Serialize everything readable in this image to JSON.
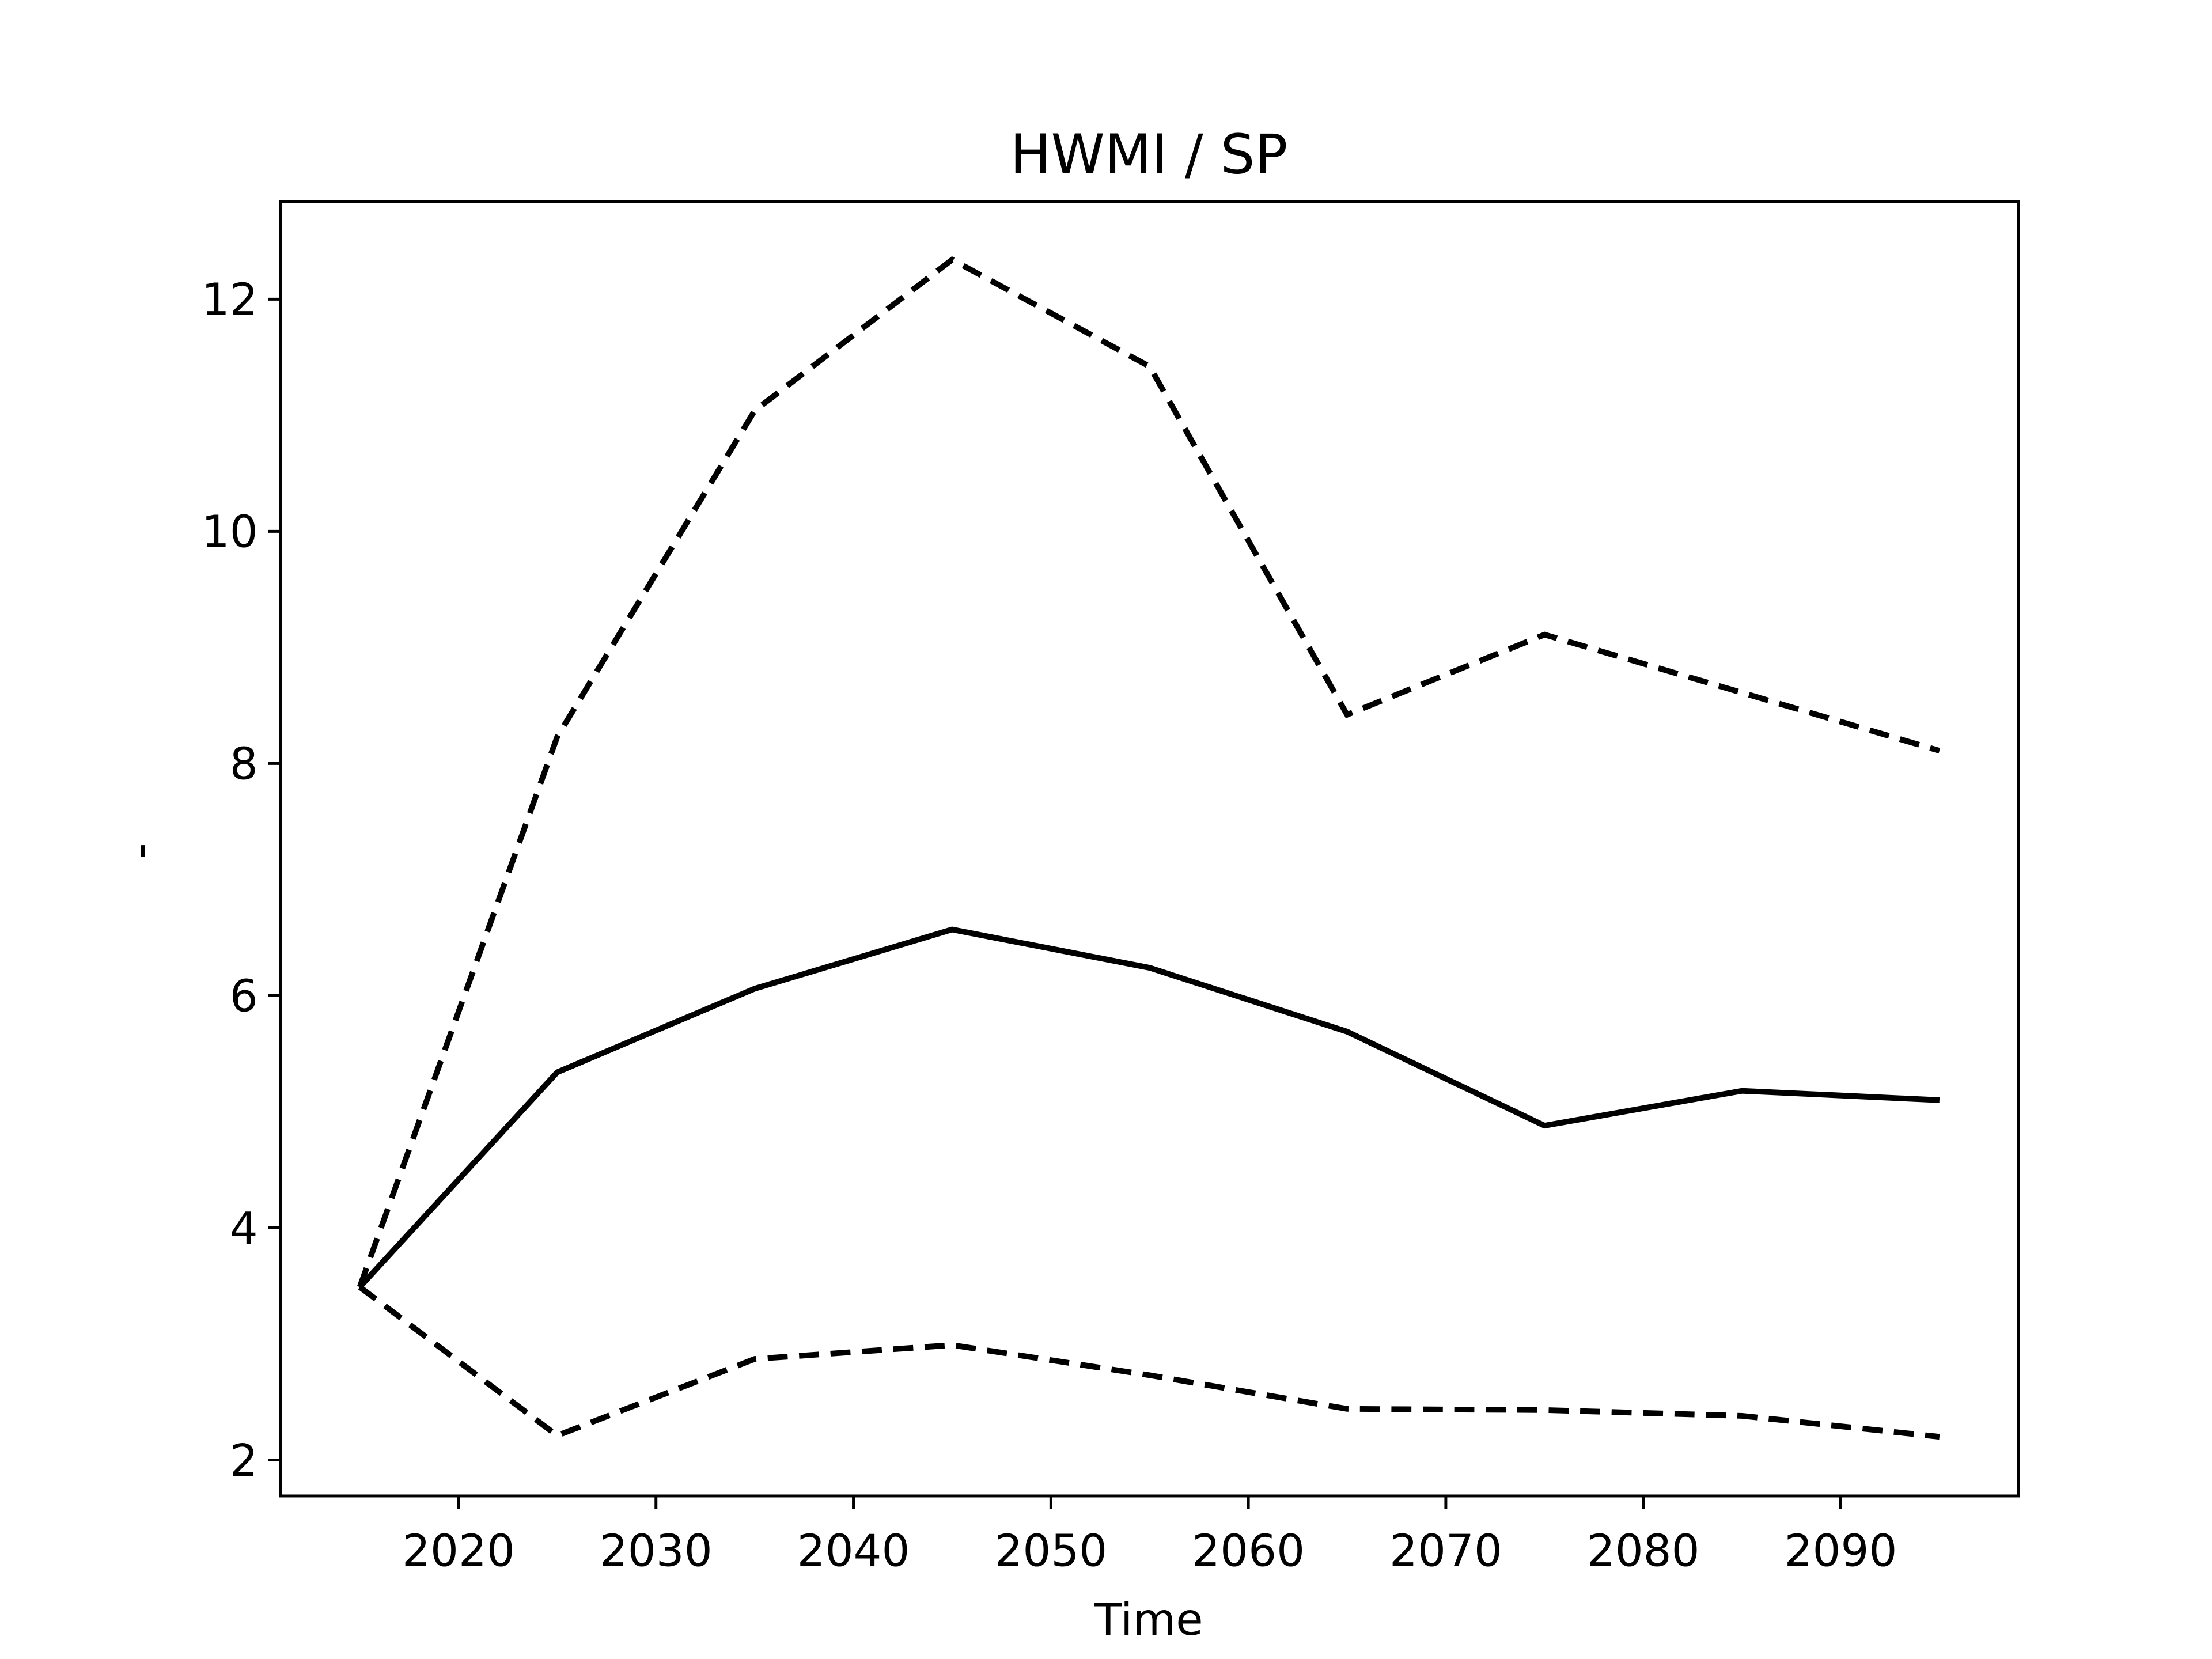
{
  "chart_data": {
    "type": "line",
    "title": "HWMI / SP",
    "xlabel": "Time",
    "ylabel": "-",
    "x": [
      2015,
      2025,
      2035,
      2045,
      2055,
      2065,
      2075,
      2085,
      2095
    ],
    "series": [
      {
        "color": "#000000",
        "dashed": false,
        "values": [
          3.49,
          5.34,
          6.06,
          6.57,
          6.24,
          5.69,
          4.88,
          5.18,
          5.1
        ]
      },
      {
        "color": "#000000",
        "dashed": true,
        "values": [
          3.49,
          8.23,
          11.04,
          12.34,
          11.42,
          8.42,
          9.11,
          8.61,
          8.11
        ]
      },
      {
        "color": "#000000",
        "dashed": true,
        "values": [
          3.49,
          2.21,
          2.87,
          2.99,
          2.73,
          2.44,
          2.43,
          2.38,
          2.2
        ]
      }
    ],
    "xlim": [
      2011,
      2099
    ],
    "ylim": [
      1.69,
      12.84
    ],
    "xticks": [
      2020,
      2030,
      2040,
      2050,
      2060,
      2070,
      2080,
      2090
    ],
    "yticks": [
      2,
      4,
      6,
      8,
      10,
      12
    ],
    "grid": false
  }
}
